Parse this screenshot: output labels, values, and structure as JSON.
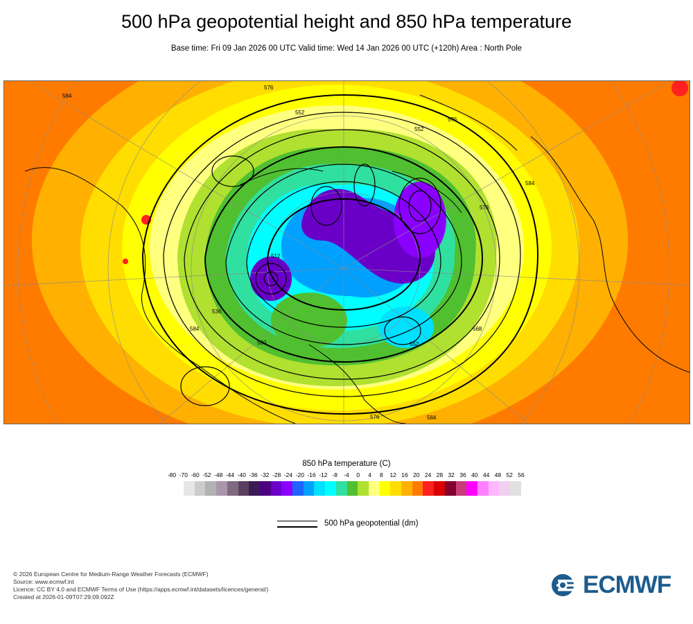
{
  "header": {
    "title": "500 hPa geopotential height and 850 hPa temperature",
    "subtitle": "Base time: Fri 09 Jan 2026 00 UTC Valid time: Wed 14 Jan 2026 00 UTC (+120h) Area : North Pole"
  },
  "map": {
    "contour_labels": [
      "584",
      "576",
      "552",
      "552",
      "576",
      "512",
      "536",
      "560",
      "584",
      "552",
      "576",
      "568",
      "584",
      "584",
      "576"
    ]
  },
  "legend": {
    "title": "850 hPa temperature (C)",
    "ticks": [
      "-80",
      "-70",
      "-60",
      "-52",
      "-48",
      "-44",
      "-40",
      "-36",
      "-32",
      "-28",
      "-24",
      "-20",
      "-16",
      "-12",
      "-8",
      "-4",
      "0",
      "4",
      "8",
      "12",
      "16",
      "20",
      "24",
      "28",
      "32",
      "36",
      "40",
      "44",
      "48",
      "52",
      "56"
    ],
    "colors": [
      "#e6e6e6",
      "#cccccc",
      "#b2b2b2",
      "#aa96aa",
      "#806a80",
      "#5a4060",
      "#3a1a55",
      "#4b0082",
      "#6a00c8",
      "#8a00ff",
      "#1e64ff",
      "#00a0ff",
      "#00e0ff",
      "#00ffff",
      "#30e0a0",
      "#50c030",
      "#b0e030",
      "#ffff80",
      "#ffff00",
      "#ffdd00",
      "#ffb000",
      "#ff7b00",
      "#ff2020",
      "#d80000",
      "#800030",
      "#c83c78",
      "#ff00ff",
      "#ff80ff",
      "#ffb8ff",
      "#f0d0f0",
      "#e0e0e0"
    ],
    "contour_key": "500 hPa geopotential (dm)"
  },
  "footer": {
    "credits": [
      "© 2026 European Centre for Medium-Range Weather Forecasts (ECMWF)",
      "Source: www.ecmwf.int",
      "Licence: CC BY 4.0 and ECMWF Terms of Use (https://apps.ecmwf.int/datasets/licences/general/)",
      "Created at 2026-01-09T07:29:09.092Z"
    ],
    "logo_text": "ECMWF"
  }
}
